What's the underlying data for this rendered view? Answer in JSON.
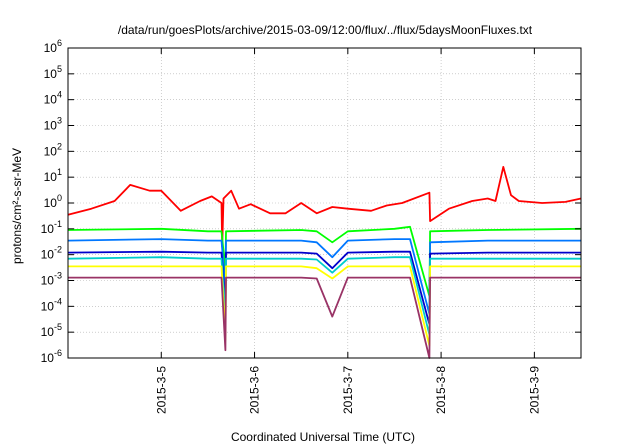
{
  "chart_data": {
    "type": "line",
    "title": "/data/run/goesPlots/archive/2015-03-09/12:00/flux/../flux/5daysMoonFluxes.txt",
    "xlabel": "Coordinated Universal Time (UTC)",
    "ylabel": "protons/cm²-s-sr-MeV",
    "y_scale": "log",
    "ylim": [
      1e-06,
      1000000.0
    ],
    "y_ticks": [
      {
        "value": 1e-06,
        "base": "10",
        "exp": "-6"
      },
      {
        "value": 1e-05,
        "base": "10",
        "exp": "-5"
      },
      {
        "value": 0.0001,
        "base": "10",
        "exp": "-4"
      },
      {
        "value": 0.001,
        "base": "10",
        "exp": "-3"
      },
      {
        "value": 0.01,
        "base": "10",
        "exp": "-2"
      },
      {
        "value": 0.1,
        "base": "10",
        "exp": "-1"
      },
      {
        "value": 1,
        "base": "10",
        "exp": "0"
      },
      {
        "value": 10,
        "base": "10",
        "exp": "1"
      },
      {
        "value": 100,
        "base": "10",
        "exp": "2"
      },
      {
        "value": 1000,
        "base": "10",
        "exp": "3"
      },
      {
        "value": 10000,
        "base": "10",
        "exp": "4"
      },
      {
        "value": 100000,
        "base": "10",
        "exp": "5"
      },
      {
        "value": 1000000,
        "base": "10",
        "exp": "6"
      }
    ],
    "xlim": [
      "2015-03-04 00:00",
      "2015-03-09 12:00"
    ],
    "x_ticks": [
      {
        "value": "2015-03-05 00:00",
        "label": "2015-3-5"
      },
      {
        "value": "2015-03-06 00:00",
        "label": "2015-3-6"
      },
      {
        "value": "2015-03-07 00:00",
        "label": "2015-3-7"
      },
      {
        "value": "2015-03-08 00:00",
        "label": "2015-3-8"
      },
      {
        "value": "2015-03-09 00:00",
        "label": "2015-3-9"
      }
    ],
    "grid": true,
    "series": [
      {
        "color": "#ff0000",
        "x": [
          "2015-03-04 00:00",
          "2015-03-04 06:00",
          "2015-03-04 12:00",
          "2015-03-04 16:00",
          "2015-03-04 21:00",
          "2015-03-05 00:00",
          "2015-03-05 05:00",
          "2015-03-05 10:00",
          "2015-03-05 13:00",
          "2015-03-05 15:30",
          "2015-03-05 15:40",
          "2015-03-05 16:00",
          "2015-03-05 18:00",
          "2015-03-05 20:00",
          "2015-03-05 23:00",
          "2015-03-06 04:00",
          "2015-03-06 08:00",
          "2015-03-06 12:00",
          "2015-03-06 16:00",
          "2015-03-06 20:00",
          "2015-03-07 00:00",
          "2015-03-07 06:00",
          "2015-03-07 10:00",
          "2015-03-07 14:00",
          "2015-03-07 21:00",
          "2015-03-07 21:10",
          "2015-03-08 02:00",
          "2015-03-08 08:00",
          "2015-03-08 12:00",
          "2015-03-08 14:00",
          "2015-03-08 16:00",
          "2015-03-08 18:00",
          "2015-03-08 20:00",
          "2015-03-09 02:00",
          "2015-03-09 08:00",
          "2015-03-09 12:00"
        ],
        "y": [
          0.35,
          0.6,
          1.2,
          5,
          3,
          3,
          0.5,
          1.2,
          1.8,
          1.0,
          0.02,
          1.5,
          3,
          0.6,
          0.9,
          0.4,
          0.4,
          1.0,
          0.4,
          0.7,
          0.6,
          0.5,
          0.8,
          1.0,
          2.5,
          0.2,
          0.6,
          1.2,
          1.5,
          1.2,
          25,
          2.0,
          1.2,
          1.0,
          1.1,
          1.5
        ]
      },
      {
        "color": "#00ff00",
        "x": [
          "2015-03-04 00:00",
          "2015-03-05 00:00",
          "2015-03-05 12:00",
          "2015-03-05 15:30",
          "2015-03-05 16:30",
          "2015-03-05 16:40",
          "2015-03-06 12:00",
          "2015-03-06 16:00",
          "2015-03-06 20:00",
          "2015-03-07 00:00",
          "2015-03-07 12:00",
          "2015-03-07 16:00",
          "2015-03-07 21:00",
          "2015-03-07 21:10",
          "2015-03-08 12:00",
          "2015-03-09 12:00"
        ],
        "y": [
          0.09,
          0.1,
          0.08,
          0.08,
          0.0025,
          0.08,
          0.09,
          0.08,
          0.03,
          0.08,
          0.1,
          0.12,
          0.00025,
          0.08,
          0.09,
          0.1
        ]
      },
      {
        "color": "#0077ff",
        "x": [
          "2015-03-04 00:00",
          "2015-03-05 00:00",
          "2015-03-05 12:00",
          "2015-03-05 15:30",
          "2015-03-05 16:30",
          "2015-03-05 16:40",
          "2015-03-06 12:00",
          "2015-03-06 16:00",
          "2015-03-06 20:00",
          "2015-03-07 00:00",
          "2015-03-07 12:00",
          "2015-03-07 16:00",
          "2015-03-07 21:00",
          "2015-03-07 21:10",
          "2015-03-08 12:00",
          "2015-03-09 12:00"
        ],
        "y": [
          0.035,
          0.04,
          0.035,
          0.035,
          0.0005,
          0.035,
          0.035,
          0.03,
          0.008,
          0.035,
          0.04,
          0.04,
          5e-05,
          0.03,
          0.035,
          0.035
        ]
      },
      {
        "color": "#0000cc",
        "x": [
          "2015-03-04 00:00",
          "2015-03-05 00:00",
          "2015-03-05 12:00",
          "2015-03-05 15:30",
          "2015-03-05 16:30",
          "2015-03-05 16:40",
          "2015-03-06 12:00",
          "2015-03-06 16:00",
          "2015-03-06 20:00",
          "2015-03-07 00:00",
          "2015-03-07 12:00",
          "2015-03-07 16:00",
          "2015-03-07 21:00",
          "2015-03-07 21:10",
          "2015-03-08 12:00",
          "2015-03-09 12:00"
        ],
        "y": [
          0.012,
          0.013,
          0.012,
          0.012,
          8e-05,
          0.012,
          0.012,
          0.011,
          0.003,
          0.012,
          0.013,
          0.013,
          2e-05,
          0.011,
          0.012,
          0.012
        ]
      },
      {
        "color": "#00cccc",
        "x": [
          "2015-03-04 00:00",
          "2015-03-05 00:00",
          "2015-03-05 12:00",
          "2015-03-05 15:30",
          "2015-03-05 16:30",
          "2015-03-05 16:40",
          "2015-03-06 12:00",
          "2015-03-06 16:00",
          "2015-03-06 20:00",
          "2015-03-07 00:00",
          "2015-03-07 12:00",
          "2015-03-07 16:00",
          "2015-03-07 21:00",
          "2015-03-07 21:10",
          "2015-03-08 12:00",
          "2015-03-09 12:00"
        ],
        "y": [
          0.007,
          0.008,
          0.007,
          0.007,
          3e-05,
          0.007,
          0.007,
          0.0065,
          0.002,
          0.007,
          0.008,
          0.008,
          8e-06,
          0.007,
          0.007,
          0.007
        ]
      },
      {
        "color": "#ffff00",
        "x": [
          "2015-03-04 00:00",
          "2015-03-05 00:00",
          "2015-03-05 12:00",
          "2015-03-05 15:30",
          "2015-03-05 16:30",
          "2015-03-05 16:40",
          "2015-03-06 12:00",
          "2015-03-06 16:00",
          "2015-03-06 20:00",
          "2015-03-07 00:00",
          "2015-03-07 12:00",
          "2015-03-07 16:00",
          "2015-03-07 21:00",
          "2015-03-07 21:10",
          "2015-03-08 12:00",
          "2015-03-09 12:00"
        ],
        "y": [
          0.0035,
          0.0035,
          0.0035,
          0.0035,
          5e-06,
          0.0035,
          0.0035,
          0.003,
          0.0012,
          0.0035,
          0.0035,
          0.0035,
          3e-06,
          0.0035,
          0.0035,
          0.0035
        ]
      },
      {
        "color": "#993366",
        "x": [
          "2015-03-04 00:00",
          "2015-03-05 00:00",
          "2015-03-05 12:00",
          "2015-03-05 15:30",
          "2015-03-05 16:30",
          "2015-03-05 16:40",
          "2015-03-06 12:00",
          "2015-03-06 16:00",
          "2015-03-06 20:00",
          "2015-03-07 00:00",
          "2015-03-07 12:00",
          "2015-03-07 16:00",
          "2015-03-07 21:00",
          "2015-03-07 21:10",
          "2015-03-08 12:00",
          "2015-03-09 12:00"
        ],
        "y": [
          0.0013,
          0.0013,
          0.0013,
          0.0013,
          2e-06,
          0.0013,
          0.0013,
          0.0012,
          4e-05,
          0.0013,
          0.0013,
          0.0013,
          1e-06,
          0.0013,
          0.0013,
          0.0013
        ]
      }
    ]
  }
}
